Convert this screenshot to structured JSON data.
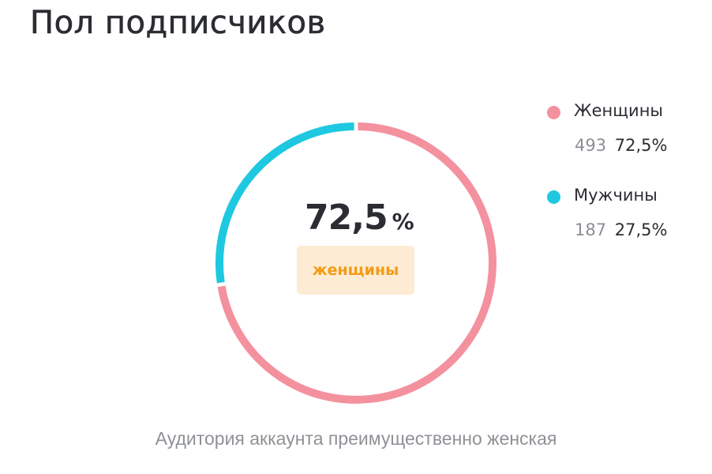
{
  "header": {
    "title": "Пол подписчиков"
  },
  "chart_data": {
    "type": "pie",
    "donut": true,
    "categories": [
      "Женщины",
      "Мужчины"
    ],
    "values": [
      72.5,
      27.5
    ],
    "counts": [
      493,
      187
    ],
    "colors": [
      "#f4919f",
      "#1ec8e0"
    ],
    "legend_position": "right"
  },
  "legend": [
    {
      "name": "Женщины",
      "count": "493",
      "percent": "72,5%",
      "color": "#f4919f"
    },
    {
      "name": "Мужчины",
      "count": "187",
      "percent": "27,5%",
      "color": "#1ec8e0"
    }
  ],
  "center": {
    "value": "72,5",
    "unit": "%",
    "label": "женщины",
    "badge_bg": "#fdebd3",
    "badge_text_color": "#f29b16"
  },
  "footnote": "Аудитория аккаунта преимущественно женская"
}
